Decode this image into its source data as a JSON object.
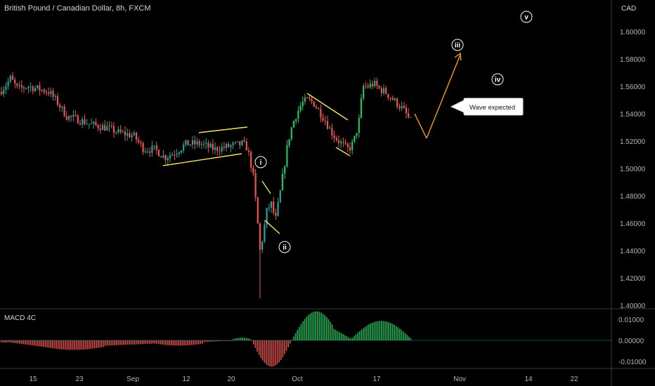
{
  "header": {
    "title": "British Pound / Canadian Dollar, 8h, FXCM"
  },
  "price_axis": {
    "currency": "CAD",
    "ticks": [
      "1.60000",
      "1.58000",
      "1.56000",
      "1.54000",
      "1.52000",
      "1.50000",
      "1.48000",
      "1.46000",
      "1.44000",
      "1.42000",
      "1.40000"
    ]
  },
  "indicator": {
    "name": "MACD 4C",
    "ticks": [
      "0.01000",
      "0.00000",
      "-0.01000"
    ]
  },
  "time_axis": {
    "ticks": [
      "15",
      "23",
      "Sep",
      "12",
      "20",
      "Oct",
      "17",
      "Nov",
      "14",
      "22"
    ]
  },
  "annotations": {
    "waves": [
      "i",
      "ii",
      "iii",
      "iv",
      "v"
    ],
    "callout": "Wave expected"
  },
  "colors": {
    "up": "#26a69a",
    "up_bright": "#22c55e",
    "down": "#ef5350",
    "channel": "#f5e05a",
    "projection": "#f59e0b",
    "background": "#000000"
  },
  "chart_data": {
    "type": "candlestick",
    "title": "British Pound / Canadian Dollar, 8h, FXCM",
    "ylabel": "CAD",
    "ylim": [
      1.4,
      1.62
    ],
    "x_ticks": [
      "15",
      "23",
      "Sep",
      "12",
      "20",
      "Oct",
      "17",
      "Nov",
      "14",
      "22"
    ],
    "close_series_approx": [
      {
        "x": "15",
        "y": 1.56
      },
      {
        "x": "23",
        "y": 1.54
      },
      {
        "x": "Sep",
        "y": 1.525
      },
      {
        "x": "12",
        "y": 1.515
      },
      {
        "x": "20",
        "y": 1.52
      },
      {
        "x": "Oct",
        "y": 1.54
      },
      {
        "x": "17",
        "y": 1.555
      }
    ],
    "key_points": {
      "wave_i_low": 1.405,
      "wave_ii": 1.46,
      "last_close": 1.533,
      "projection_low": 1.523,
      "projection_high": 1.586
    },
    "macd_ylim": [
      -0.013,
      0.017
    ]
  }
}
